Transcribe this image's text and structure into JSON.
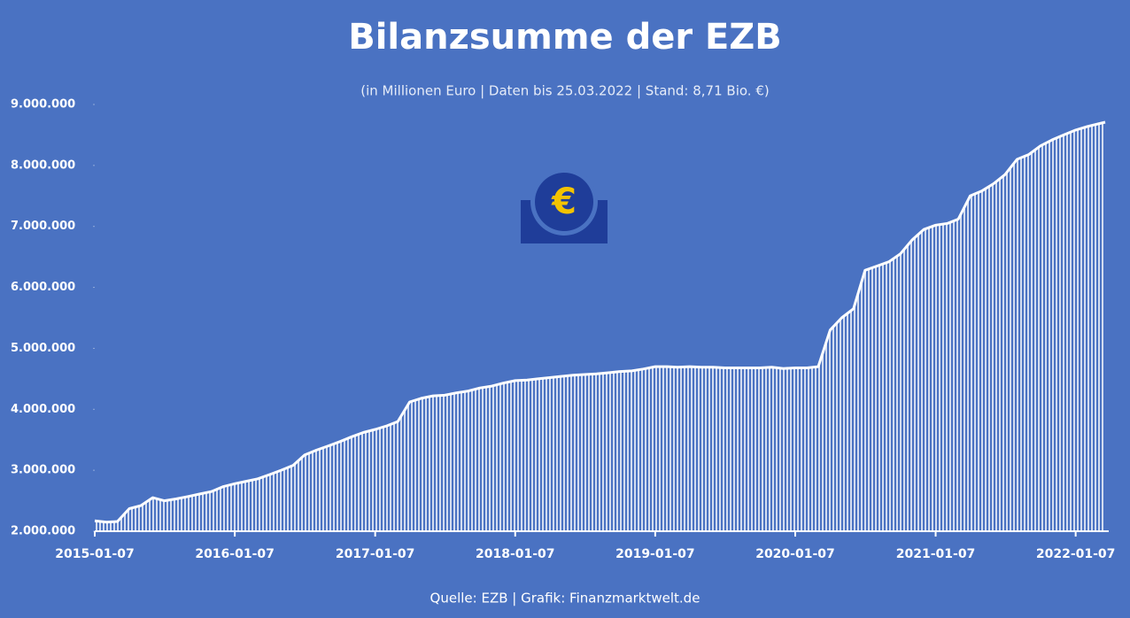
{
  "chart_data": {
    "type": "area",
    "title": "Bilanzsumme der EZB",
    "subtitle": "(in Millionen Euro | Daten bis 25.03.2022 | Stand: 8,71 Bio. €)",
    "source": "Quelle: EZB | Grafik: Finanzmarktwelt.de",
    "color": "#ffffff",
    "x": [
      "2015-01-07",
      "2015-02-07",
      "2015-03-07",
      "2015-04-07",
      "2015-05-07",
      "2015-06-07",
      "2015-07-07",
      "2015-08-07",
      "2015-09-07",
      "2015-10-07",
      "2015-11-07",
      "2015-12-07",
      "2016-01-07",
      "2016-02-07",
      "2016-03-07",
      "2016-04-07",
      "2016-05-07",
      "2016-06-07",
      "2016-07-07",
      "2016-08-07",
      "2016-09-07",
      "2016-10-07",
      "2016-11-07",
      "2016-12-07",
      "2017-01-07",
      "2017-02-07",
      "2017-03-07",
      "2017-04-07",
      "2017-05-07",
      "2017-06-07",
      "2017-07-07",
      "2017-08-07",
      "2017-09-07",
      "2017-10-07",
      "2017-11-07",
      "2017-12-07",
      "2018-01-07",
      "2018-02-07",
      "2018-03-07",
      "2018-04-07",
      "2018-05-07",
      "2018-06-07",
      "2018-07-07",
      "2018-08-07",
      "2018-09-07",
      "2018-10-07",
      "2018-11-07",
      "2018-12-07",
      "2019-01-07",
      "2019-02-07",
      "2019-03-07",
      "2019-04-07",
      "2019-05-07",
      "2019-06-07",
      "2019-07-07",
      "2019-08-07",
      "2019-09-07",
      "2019-10-07",
      "2019-11-07",
      "2019-12-07",
      "2020-01-07",
      "2020-02-07",
      "2020-03-07",
      "2020-04-07",
      "2020-05-07",
      "2020-06-07",
      "2020-07-07",
      "2020-08-07",
      "2020-09-07",
      "2020-10-07",
      "2020-11-07",
      "2020-12-07",
      "2021-01-07",
      "2021-02-07",
      "2021-03-07",
      "2021-04-07",
      "2021-05-07",
      "2021-06-07",
      "2021-07-07",
      "2021-08-07",
      "2021-09-07",
      "2021-10-07",
      "2021-11-07",
      "2021-12-07",
      "2022-01-07",
      "2022-02-07",
      "2022-03-25"
    ],
    "values": [
      2170000,
      2150000,
      2160000,
      2370000,
      2420000,
      2550000,
      2500000,
      2530000,
      2570000,
      2610000,
      2650000,
      2730000,
      2780000,
      2820000,
      2860000,
      2930000,
      3000000,
      3080000,
      3250000,
      3330000,
      3400000,
      3470000,
      3550000,
      3620000,
      3670000,
      3730000,
      3800000,
      4120000,
      4180000,
      4220000,
      4230000,
      4270000,
      4300000,
      4350000,
      4380000,
      4430000,
      4470000,
      4480000,
      4500000,
      4520000,
      4540000,
      4560000,
      4570000,
      4580000,
      4600000,
      4620000,
      4630000,
      4660000,
      4700000,
      4700000,
      4690000,
      4700000,
      4690000,
      4690000,
      4680000,
      4680000,
      4680000,
      4680000,
      4690000,
      4670000,
      4680000,
      4680000,
      4700000,
      5300000,
      5500000,
      5650000,
      6280000,
      6350000,
      6420000,
      6550000,
      6780000,
      6950000,
      7020000,
      7050000,
      7120000,
      7500000,
      7580000,
      7700000,
      7850000,
      8100000,
      8180000,
      8320000,
      8420000,
      8500000,
      8580000,
      8640000,
      8710000
    ],
    "xlim": [
      "2015-01-07",
      "2022-03-25"
    ],
    "xticks": [
      "2015-01-07",
      "2016-01-07",
      "2017-01-07",
      "2018-01-07",
      "2019-01-07",
      "2020-01-07",
      "2021-01-07",
      "2022-01-07"
    ],
    "ylim": [
      2000000,
      9000000
    ],
    "yticks": [
      {
        "value": 2000000,
        "label": "2.000.000"
      },
      {
        "value": 3000000,
        "label": "3.000.000"
      },
      {
        "value": 4000000,
        "label": "4.000.000"
      },
      {
        "value": 5000000,
        "label": "5.000.000"
      },
      {
        "value": 6000000,
        "label": "6.000.000"
      },
      {
        "value": 7000000,
        "label": "7.000.000"
      },
      {
        "value": 8000000,
        "label": "8.000.000"
      },
      {
        "value": 9000000,
        "label": "9.000.000"
      }
    ]
  }
}
